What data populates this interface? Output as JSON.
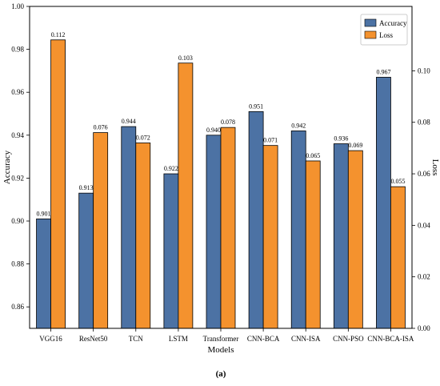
{
  "chart_data": {
    "type": "bar",
    "categories": [
      "VGG16",
      "ResNet50",
      "TCN",
      "LSTM",
      "Transformer",
      "CNN-BCA",
      "CNN-ISA",
      "CNN-PSO",
      "CNN-BCA-ISA"
    ],
    "series": [
      {
        "name": "Accuracy",
        "axis": "left",
        "color": "#4c72a4",
        "values": [
          0.901,
          0.913,
          0.944,
          0.922,
          0.94,
          0.951,
          0.942,
          0.936,
          0.967
        ],
        "labels": [
          "0.901",
          "0.913",
          "0.944",
          "0.922",
          "0.940",
          "0.951",
          "0.942",
          "0.936",
          "0.967"
        ]
      },
      {
        "name": "Loss",
        "axis": "right",
        "color": "#f4922e",
        "values": [
          0.112,
          0.076,
          0.072,
          0.103,
          0.078,
          0.071,
          0.065,
          0.069,
          0.055
        ],
        "labels": [
          "0.112",
          "0.076",
          "0.072",
          "0.103",
          "0.078",
          "0.071",
          "0.065",
          "0.069",
          "0.055"
        ]
      }
    ],
    "xlabel": "Models",
    "ylabel": "Accuracy",
    "y2label": "Loss",
    "ylim": [
      0.85,
      1.0
    ],
    "y2lim": [
      0.0,
      0.125
    ],
    "yticks": [
      "0.86",
      "0.88",
      "0.90",
      "0.92",
      "0.94",
      "0.96",
      "0.98",
      "1.00"
    ],
    "y2ticks": [
      "0.00",
      "0.02",
      "0.04",
      "0.06",
      "0.08",
      "0.10"
    ],
    "legend_position": "top-right",
    "caption": "(a)"
  }
}
